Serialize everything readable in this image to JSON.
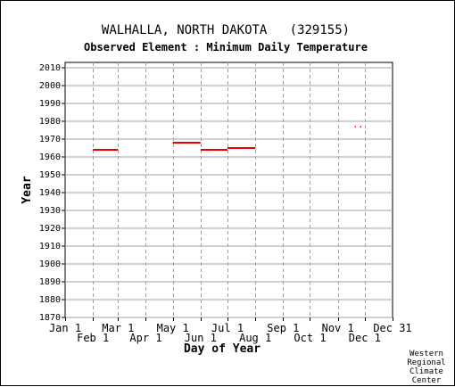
{
  "chart_data": {
    "type": "line",
    "title": "WALHALLA, NORTH DAKOTA   (329155)",
    "subtitle": "Observed Element : Minimum Daily Temperature",
    "xlabel": "Day of Year",
    "ylabel": "Year",
    "xlim": [
      1,
      366
    ],
    "ylim": [
      1870,
      2012
    ],
    "y_ticks": [
      1870,
      1880,
      1890,
      1900,
      1910,
      1920,
      1930,
      1940,
      1950,
      1960,
      1970,
      1980,
      1990,
      2000,
      2010
    ],
    "x_ticks_upper": [
      {
        "label": "Jan 1",
        "day": 1
      },
      {
        "label": "Mar 1",
        "day": 60
      },
      {
        "label": "May 1",
        "day": 121
      },
      {
        "label": "Jul 1",
        "day": 182
      },
      {
        "label": "Sep 1",
        "day": 244
      },
      {
        "label": "Nov 1",
        "day": 305
      },
      {
        "label": "Dec 31",
        "day": 366
      }
    ],
    "x_ticks_lower": [
      {
        "label": "Feb 1",
        "day": 32
      },
      {
        "label": "Apr 1",
        "day": 91
      },
      {
        "label": "Jun 1",
        "day": 152
      },
      {
        "label": "Aug 1",
        "day": 213
      },
      {
        "label": "Oct 1",
        "day": 274
      },
      {
        "label": "Dec 1",
        "day": 335
      }
    ],
    "grid": true,
    "series_color": "#ee0000",
    "segments": [
      {
        "year": 1964,
        "start_day": 32,
        "end_day": 60
      },
      {
        "year": 1968,
        "start_day": 121,
        "end_day": 152
      },
      {
        "year": 1964,
        "start_day": 152,
        "end_day": 182
      },
      {
        "year": 1965,
        "start_day": 182,
        "end_day": 213
      },
      {
        "year": 1977,
        "start_day": 324,
        "end_day": 325
      },
      {
        "year": 1977,
        "start_day": 330,
        "end_day": 331
      }
    ]
  },
  "credit": [
    "Western",
    "Regional",
    "Climate",
    "Center"
  ]
}
